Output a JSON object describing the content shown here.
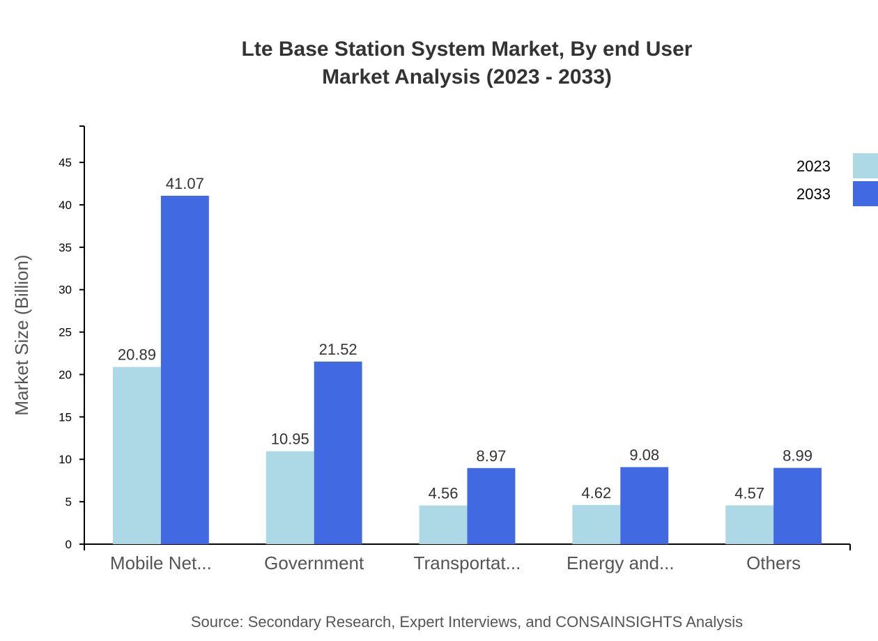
{
  "chart_data": {
    "type": "bar",
    "title": [
      "Lte Base Station System Market, By end User",
      "Market Analysis (2023 - 2033)"
    ],
    "ylabel": "Market Size (Billion)",
    "xlabel": "",
    "categories": [
      "Mobile Net...",
      "Government",
      "Transportat...",
      "Energy and...",
      "Others"
    ],
    "series": [
      {
        "name": "2023",
        "color": "#add8e6",
        "values": [
          20.89,
          10.95,
          4.56,
          4.62,
          4.57
        ]
      },
      {
        "name": "2033",
        "color": "#4169e1",
        "values": [
          41.07,
          21.52,
          8.97,
          9.08,
          8.99
        ]
      }
    ],
    "ylim": [
      0,
      49.28
    ],
    "yticks": [
      0,
      5,
      10,
      15,
      20,
      25,
      30,
      35,
      40,
      45
    ],
    "grid": false,
    "legend_position": "top-right",
    "source": "Source: Secondary Research, Expert Interviews, and CONSAINSIGHTS Analysis"
  }
}
